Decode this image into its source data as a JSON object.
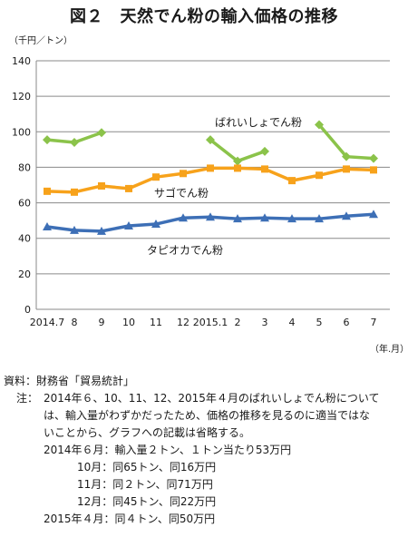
{
  "title": "図２　天然でん粉の輸入価格の推移",
  "y_unit": "（千円／トン）",
  "x_unit": "（年.月）",
  "colors": {
    "green": "#8bc34a",
    "orange": "#f7a21b",
    "blue": "#3d6fb6"
  },
  "chart_data": {
    "type": "line",
    "title": "図２　天然でん粉の輸入価格の推移",
    "xlabel": "（年.月）",
    "ylabel": "（千円／トン）",
    "ylim": [
      0,
      140
    ],
    "yticks": [
      0,
      20,
      40,
      60,
      80,
      100,
      120,
      140
    ],
    "grid": true,
    "categories": [
      "2014.7",
      "8",
      "9",
      "10",
      "11",
      "12",
      "2015.1",
      "2",
      "3",
      "4",
      "5",
      "6",
      "7"
    ],
    "series": [
      {
        "name": "ばれいしょでん粉",
        "color": "#8bc34a",
        "marker": "diamond",
        "values": [
          95.5,
          94.0,
          99.5,
          null,
          null,
          null,
          95.5,
          83.5,
          89.0,
          null,
          104.0,
          86.0,
          85.0
        ]
      },
      {
        "name": "サゴでん粉",
        "color": "#f7a21b",
        "marker": "square",
        "values": [
          66.5,
          66.0,
          69.5,
          68.0,
          74.5,
          76.5,
          79.5,
          79.5,
          79.0,
          72.5,
          75.5,
          79.0,
          78.5
        ]
      },
      {
        "name": "タピオカでん粉",
        "color": "#3d6fb6",
        "marker": "triangle",
        "values": [
          46.5,
          44.5,
          44.0,
          47.0,
          48.0,
          51.5,
          52.0,
          51.0,
          51.5,
          51.0,
          51.0,
          52.5,
          53.5
        ]
      }
    ]
  },
  "notes": {
    "source": "資料：財務省「貿易統計」",
    "note_label": "注：",
    "note_line1": "2014年６、10、11、12、2015年４月のばれいしょでん粉について",
    "note_line2": "は、輸入量がわずかだったため、価格の推移を見るのに適当ではな",
    "note_line3": "いことから、グラフへの記載は省略する。",
    "d1": "2014年６月：輸入量２トン、１トン当たり53万円",
    "d2": "10月：同65トン、同16万円",
    "d3": "11月：同２トン、同71万円",
    "d4": "12月：同45トン、同22万円",
    "d5": "2015年４月：同４トン、同50万円"
  }
}
